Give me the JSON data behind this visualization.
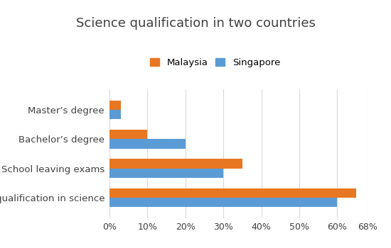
{
  "title": "Science qualification in two countries",
  "categories": [
    "No qualification in science",
    "School leaving exams",
    "Bachelor’s degree",
    "Master’s degree"
  ],
  "malaysia": [
    0.65,
    0.35,
    0.1,
    0.03
  ],
  "singapore": [
    0.6,
    0.3,
    0.2,
    0.03
  ],
  "malaysia_color": "#E87722",
  "singapore_color": "#5B9BD5",
  "legend_labels": [
    "Malaysia",
    "Singapore"
  ],
  "xlim": [
    0,
    0.68
  ],
  "xticks": [
    0,
    0.1,
    0.2,
    0.3,
    0.4,
    0.5,
    0.6,
    0.68
  ],
  "xtick_labels": [
    "0%",
    "10%",
    "20%",
    "30%",
    "40%",
    "50%",
    "60%",
    "68%"
  ],
  "bar_height": 0.32,
  "background_color": "#ffffff",
  "grid_color": "#d9d9d9",
  "title_color": "#404040",
  "label_color": "#404040"
}
